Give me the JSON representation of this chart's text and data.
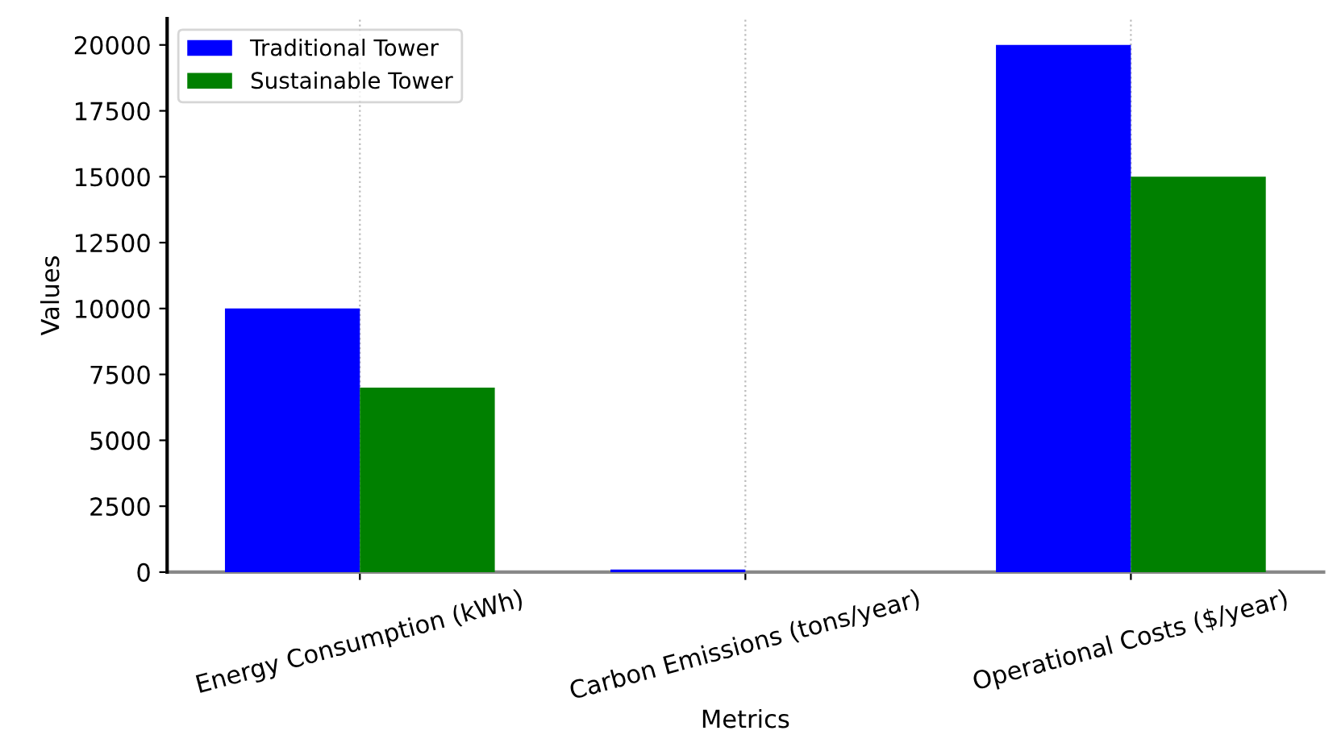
{
  "chart_data": {
    "type": "bar",
    "xlabel": "Metrics",
    "ylabel": "Values",
    "categories": [
      "Energy Consumption (kWh)",
      "Carbon Emissions (tons/year)",
      "Operational Costs ($/year)"
    ],
    "series": [
      {
        "name": "Traditional Tower",
        "color": "#0000ff",
        "values": [
          10000,
          100,
          20000
        ]
      },
      {
        "name": "Sustainable Tower",
        "color": "#008000",
        "values": [
          7000,
          null,
          15000
        ]
      }
    ],
    "ylim": [
      0,
      21000
    ],
    "yticks": [
      0,
      2500,
      5000,
      7500,
      10000,
      12500,
      15000,
      17500,
      20000
    ],
    "grid": "x",
    "legend": "top left"
  }
}
